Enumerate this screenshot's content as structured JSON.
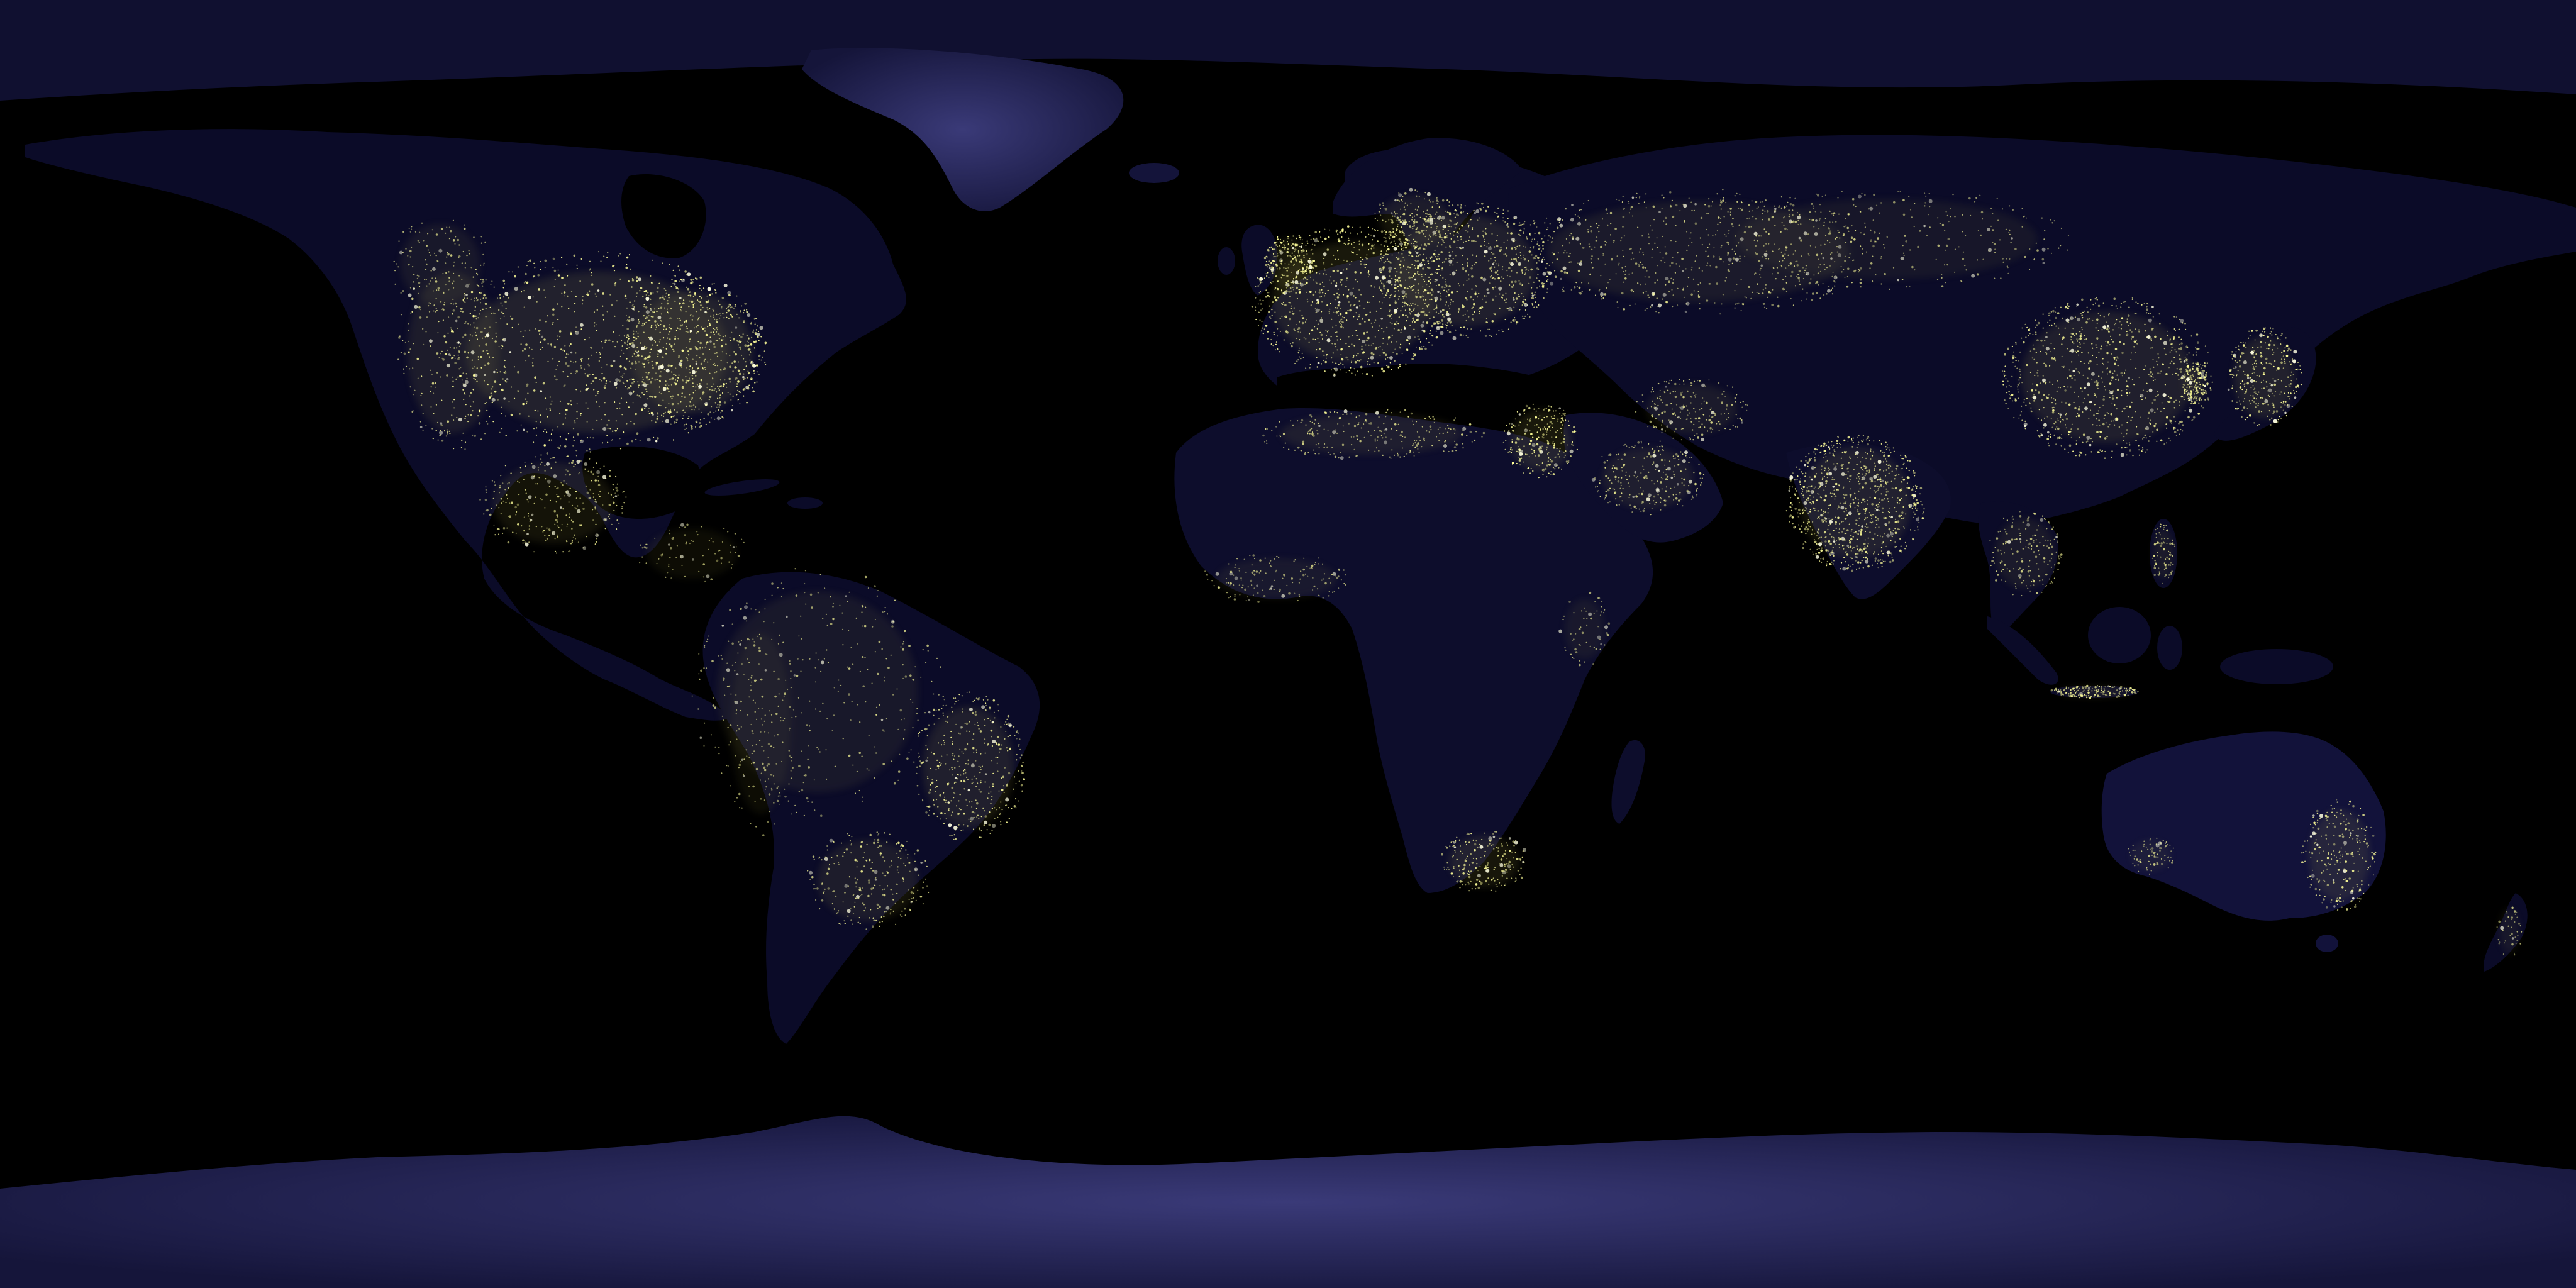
{
  "colors": {
    "ocean": "#000000",
    "land": "#0a0a26",
    "ice": "#2a2a5c",
    "light": "#ffff99",
    "light_core": "#ffffe0",
    "glow": "#b8b050"
  },
  "regions": [
    {
      "name": "north-america",
      "kind": "land"
    },
    {
      "name": "greenland",
      "kind": "ice"
    },
    {
      "name": "south-america",
      "kind": "land"
    },
    {
      "name": "europe",
      "kind": "land"
    },
    {
      "name": "africa",
      "kind": "land"
    },
    {
      "name": "asia",
      "kind": "land"
    },
    {
      "name": "arabia",
      "kind": "land"
    },
    {
      "name": "india",
      "kind": "land"
    },
    {
      "name": "southeast-asia",
      "kind": "land"
    },
    {
      "name": "japan",
      "kind": "land"
    },
    {
      "name": "australia",
      "kind": "land"
    },
    {
      "name": "new-zealand",
      "kind": "land"
    },
    {
      "name": "madagascar",
      "kind": "land"
    },
    {
      "name": "british-isles",
      "kind": "land"
    },
    {
      "name": "antarctica",
      "kind": "ice"
    },
    {
      "name": "arctic",
      "kind": "ice"
    }
  ]
}
